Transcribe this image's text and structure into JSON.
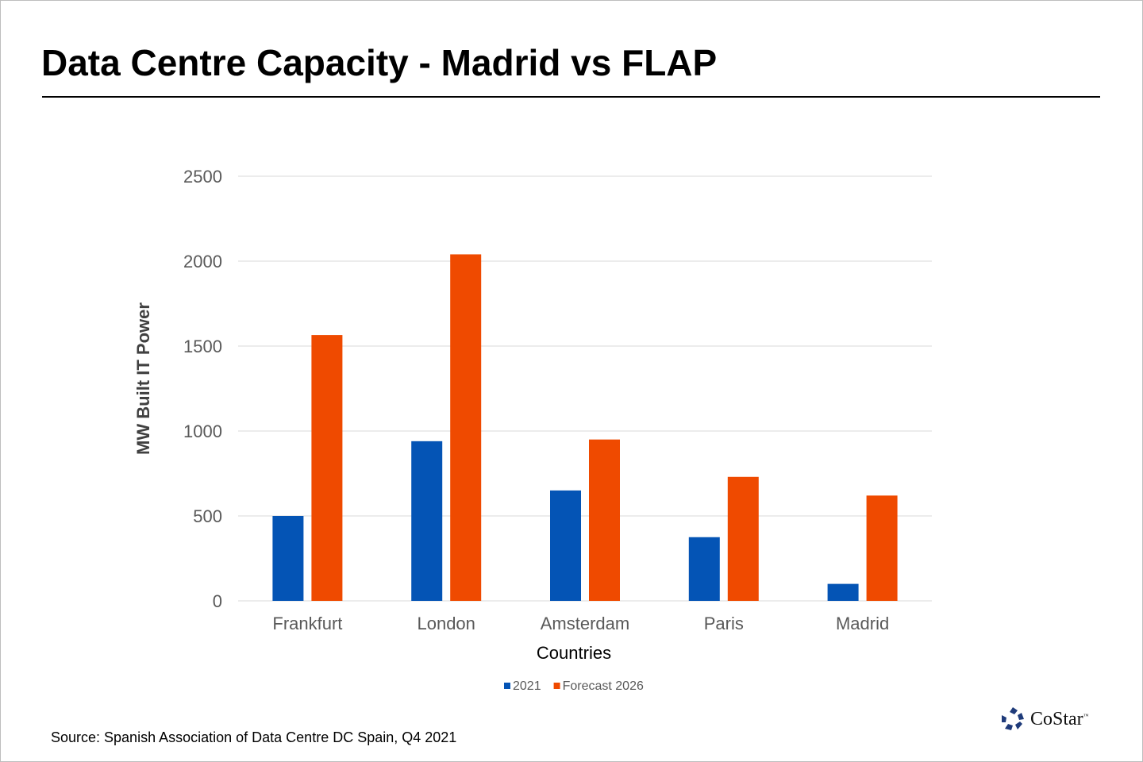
{
  "title": "Data Centre Capacity - Madrid vs FLAP",
  "source": "Source: Spanish Association of Data Centre DC Spain, Q4 2021",
  "logo": {
    "text": "CoStar",
    "tm": "™"
  },
  "colors": {
    "2021": "#0454b5",
    "forecast": "#ef4a00",
    "grid": "#d9d9d9",
    "text": "#595959"
  },
  "chart_data": {
    "type": "bar",
    "title": "",
    "xlabel": "Countries",
    "ylabel": "MW Built IT Power",
    "ylim": [
      0,
      2500
    ],
    "yticks": [
      0,
      500,
      1000,
      1500,
      2000,
      2500
    ],
    "grid": true,
    "legend_position": "bottom",
    "categories": [
      "Frankfurt",
      "London",
      "Amsterdam",
      "Paris",
      "Madrid"
    ],
    "series": [
      {
        "name": "2021",
        "color": "#0454b5",
        "values": [
          500,
          940,
          650,
          375,
          100
        ]
      },
      {
        "name": "Forecast 2026",
        "color": "#ef4a00",
        "values": [
          1565,
          2040,
          950,
          730,
          620
        ]
      }
    ]
  }
}
